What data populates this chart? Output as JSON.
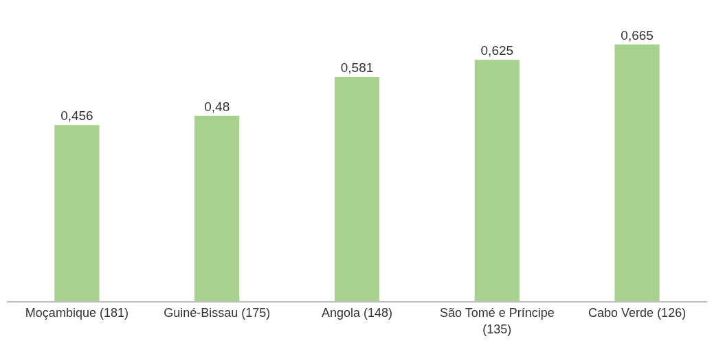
{
  "chart_data": {
    "type": "bar",
    "categories": [
      "Moçambique (181)",
      "Guiné-Bissau (175)",
      "Angola (148)",
      "São Tomé e Príncipe (135)",
      "Cabo Verde (126)"
    ],
    "values": [
      0.456,
      0.48,
      0.581,
      0.625,
      0.665
    ],
    "value_labels": [
      "0,456",
      "0,48",
      "0,581",
      "0,625",
      "0,665"
    ],
    "color": "#a9d18e"
  }
}
